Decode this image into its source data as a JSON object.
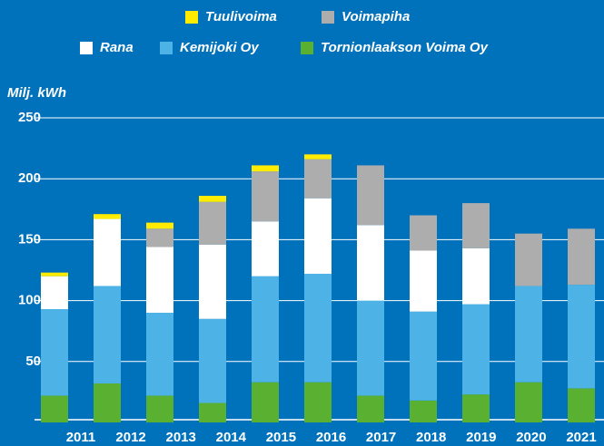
{
  "chart_data": {
    "type": "stacked-bar",
    "y_axis_label": "Milj. kWh",
    "categories": [
      "2011",
      "2012",
      "2013",
      "2014",
      "2015",
      "2016",
      "2017",
      "2018",
      "2019",
      "2020",
      "2021"
    ],
    "series": [
      {
        "name": "Tornionlaakson Voima Oy",
        "color": "#5ab031",
        "values": [
          22,
          32,
          22,
          16,
          33,
          33,
          22,
          18,
          23,
          33,
          28
        ]
      },
      {
        "name": "Kemijoki Oy",
        "color": "#4db3e6",
        "values": [
          71,
          80,
          68,
          69,
          87,
          89,
          78,
          73,
          74,
          79,
          85
        ]
      },
      {
        "name": "Rana",
        "color": "#ffffff",
        "values": [
          27,
          55,
          54,
          61,
          45,
          62,
          62,
          50,
          46,
          0,
          0
        ]
      },
      {
        "name": "Voimapiha",
        "color": "#adadad",
        "values": [
          0,
          0,
          15,
          35,
          41,
          32,
          49,
          29,
          37,
          43,
          46
        ]
      },
      {
        "name": "Tuulivoima",
        "color": "#ffec00",
        "values": [
          3,
          4,
          5,
          5,
          5,
          4,
          0,
          0,
          0,
          0,
          0
        ]
      }
    ],
    "ylim": [
      0,
      250
    ],
    "yticks": [
      50,
      100,
      150,
      200,
      250
    ],
    "grid": true
  }
}
